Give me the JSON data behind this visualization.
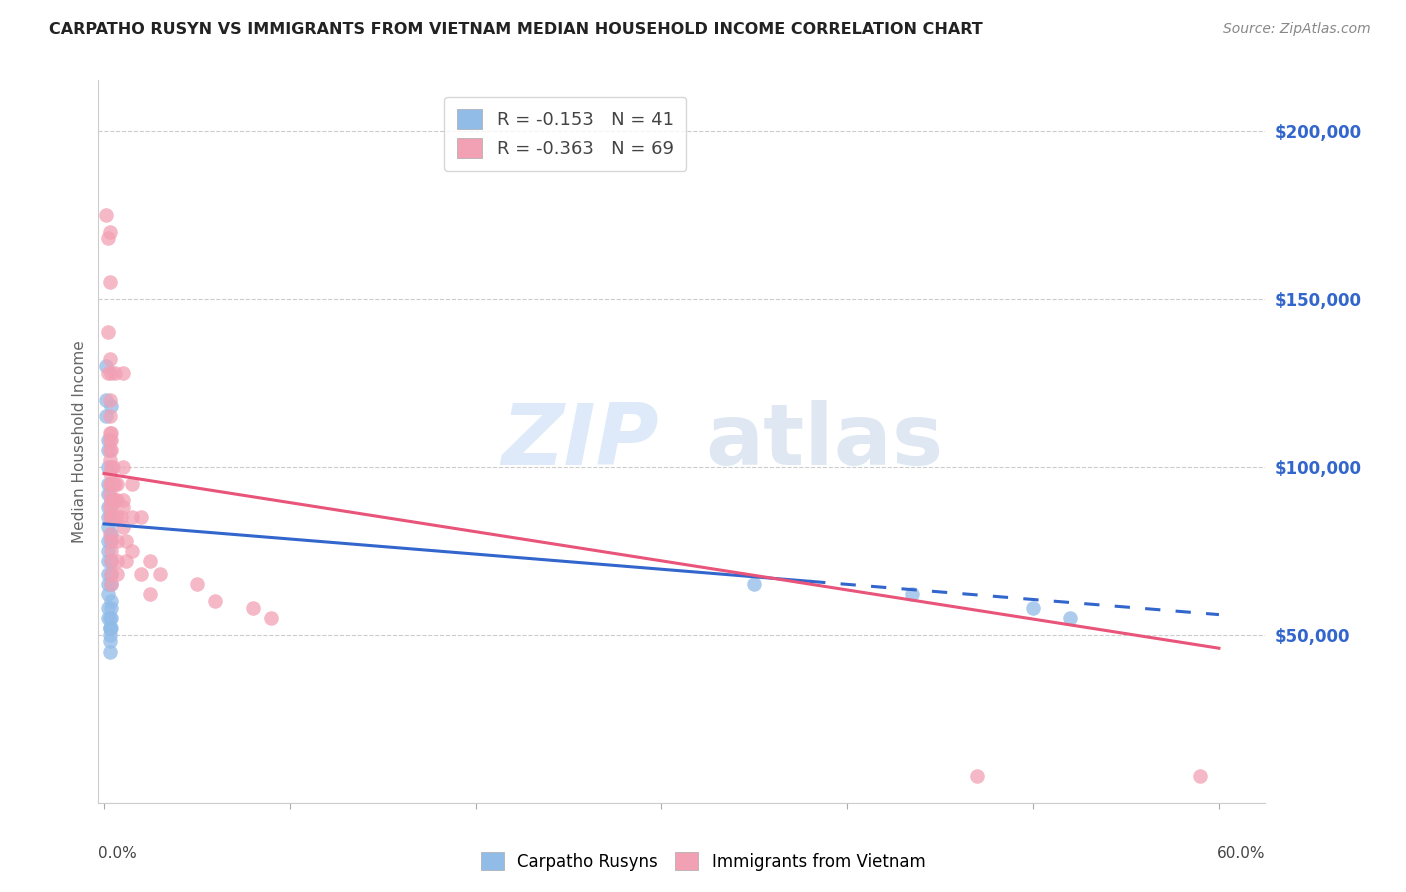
{
  "title": "CARPATHO RUSYN VS IMMIGRANTS FROM VIETNAM MEDIAN HOUSEHOLD INCOME CORRELATION CHART",
  "source": "Source: ZipAtlas.com",
  "ylabel": "Median Household Income",
  "ytick_vals": [
    0,
    50000,
    100000,
    150000,
    200000
  ],
  "ytick_labels": [
    "",
    "$50,000",
    "$100,000",
    "$150,000",
    "$200,000"
  ],
  "legend_r1": "R = -0.153",
  "legend_n1": "N = 41",
  "legend_r2": "R = -0.363",
  "legend_n2": "N = 69",
  "blue_color": "#92bce8",
  "pink_color": "#f2a0b4",
  "trendline_blue": "#3366cc",
  "trendline_pink": "#e8547a",
  "watermark_zip": "ZIP",
  "watermark_atlas": "atlas",
  "xlim": [
    -0.003,
    0.625
  ],
  "ylim": [
    0,
    215000
  ],
  "blue_scatter": [
    [
      0.001,
      130000
    ],
    [
      0.001,
      120000
    ],
    [
      0.001,
      115000
    ],
    [
      0.002,
      108000
    ],
    [
      0.002,
      105000
    ],
    [
      0.002,
      100000
    ],
    [
      0.002,
      95000
    ],
    [
      0.002,
      92000
    ],
    [
      0.002,
      88000
    ],
    [
      0.002,
      85000
    ],
    [
      0.002,
      82000
    ],
    [
      0.002,
      78000
    ],
    [
      0.002,
      75000
    ],
    [
      0.002,
      72000
    ],
    [
      0.002,
      68000
    ],
    [
      0.002,
      65000
    ],
    [
      0.002,
      62000
    ],
    [
      0.002,
      58000
    ],
    [
      0.002,
      55000
    ],
    [
      0.003,
      52000
    ],
    [
      0.003,
      50000
    ],
    [
      0.003,
      48000
    ],
    [
      0.003,
      45000
    ],
    [
      0.003,
      52000
    ],
    [
      0.003,
      55000
    ],
    [
      0.004,
      118000
    ],
    [
      0.004,
      90000
    ],
    [
      0.004,
      85000
    ],
    [
      0.004,
      80000
    ],
    [
      0.004,
      78000
    ],
    [
      0.004,
      72000
    ],
    [
      0.004,
      68000
    ],
    [
      0.004,
      65000
    ],
    [
      0.004,
      60000
    ],
    [
      0.004,
      58000
    ],
    [
      0.004,
      55000
    ],
    [
      0.004,
      52000
    ],
    [
      0.35,
      65000
    ],
    [
      0.435,
      62000
    ],
    [
      0.5,
      58000
    ],
    [
      0.52,
      55000
    ]
  ],
  "pink_scatter": [
    [
      0.001,
      175000
    ],
    [
      0.002,
      168000
    ],
    [
      0.002,
      140000
    ],
    [
      0.002,
      128000
    ],
    [
      0.003,
      170000
    ],
    [
      0.003,
      155000
    ],
    [
      0.003,
      132000
    ],
    [
      0.003,
      120000
    ],
    [
      0.003,
      115000
    ],
    [
      0.003,
      110000
    ],
    [
      0.003,
      108000
    ],
    [
      0.003,
      105000
    ],
    [
      0.003,
      102000
    ],
    [
      0.003,
      98000
    ],
    [
      0.003,
      95000
    ],
    [
      0.003,
      92000
    ],
    [
      0.003,
      88000
    ],
    [
      0.003,
      85000
    ],
    [
      0.003,
      80000
    ],
    [
      0.004,
      128000
    ],
    [
      0.004,
      110000
    ],
    [
      0.004,
      108000
    ],
    [
      0.004,
      105000
    ],
    [
      0.004,
      100000
    ],
    [
      0.004,
      95000
    ],
    [
      0.004,
      90000
    ],
    [
      0.004,
      88000
    ],
    [
      0.004,
      85000
    ],
    [
      0.004,
      78000
    ],
    [
      0.004,
      75000
    ],
    [
      0.004,
      72000
    ],
    [
      0.004,
      68000
    ],
    [
      0.004,
      65000
    ],
    [
      0.005,
      100000
    ],
    [
      0.005,
      95000
    ],
    [
      0.005,
      90000
    ],
    [
      0.005,
      85000
    ],
    [
      0.006,
      128000
    ],
    [
      0.006,
      95000
    ],
    [
      0.006,
      90000
    ],
    [
      0.006,
      85000
    ],
    [
      0.007,
      95000
    ],
    [
      0.007,
      90000
    ],
    [
      0.007,
      85000
    ],
    [
      0.007,
      78000
    ],
    [
      0.007,
      72000
    ],
    [
      0.007,
      68000
    ],
    [
      0.009,
      85000
    ],
    [
      0.01,
      128000
    ],
    [
      0.01,
      100000
    ],
    [
      0.01,
      90000
    ],
    [
      0.01,
      88000
    ],
    [
      0.01,
      82000
    ],
    [
      0.012,
      78000
    ],
    [
      0.012,
      72000
    ],
    [
      0.015,
      95000
    ],
    [
      0.015,
      85000
    ],
    [
      0.015,
      75000
    ],
    [
      0.02,
      85000
    ],
    [
      0.02,
      68000
    ],
    [
      0.025,
      72000
    ],
    [
      0.025,
      62000
    ],
    [
      0.03,
      68000
    ],
    [
      0.05,
      65000
    ],
    [
      0.06,
      60000
    ],
    [
      0.08,
      58000
    ],
    [
      0.09,
      55000
    ],
    [
      0.47,
      8000
    ],
    [
      0.59,
      8000
    ]
  ],
  "blue_trend_x": [
    0.0,
    0.6
  ],
  "blue_trend_y": [
    83000,
    56000
  ],
  "pink_trend_x": [
    0.0,
    0.6
  ],
  "pink_trend_y": [
    98000,
    46000
  ]
}
